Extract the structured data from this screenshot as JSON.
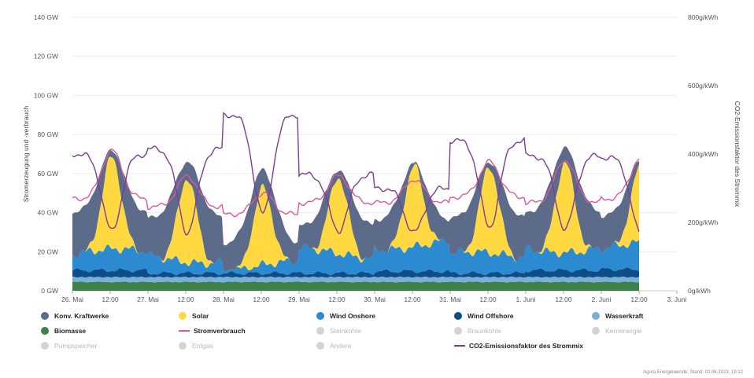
{
  "chart_data": {
    "type": "area",
    "title": "",
    "ylabel_left": "Stromerzeugung und -verbrauch",
    "ylabel_right": "CO2-Emissionsfaktor des Strommix",
    "left_ticks": [
      "0 GW",
      "20 GW",
      "40 GW",
      "60 GW",
      "80 GW",
      "100 GW",
      "120 GW",
      "140 GW"
    ],
    "right_ticks": [
      "0g/kWh",
      "200g/kWh",
      "400g/kWh",
      "600g/kWh",
      "800g/kWh"
    ],
    "ylim_left": [
      0,
      140
    ],
    "ylim_right": [
      0,
      800
    ],
    "x_ticks": [
      "26. Mai",
      "12:00",
      "27. Mai",
      "12:00",
      "28. Mai",
      "12:00",
      "29. Mai",
      "12:00",
      "30. Mai",
      "12:00",
      "31. Mai",
      "12:00",
      "1. Juni",
      "12:00",
      "2. Juni",
      "12:00",
      "3. Juni"
    ],
    "x_range_hours": [
      0,
      192
    ],
    "data_end_hour": 180,
    "days": [
      "26. Mai",
      "27. Mai",
      "28. Mai",
      "29. Mai",
      "30. Mai",
      "31. Mai",
      "1. Juni",
      "2. Juni"
    ],
    "series": [
      {
        "name": "Biomasse",
        "color": "#3f7f4a",
        "daily_level_gw": [
          4.5,
          4.5,
          4.5,
          4.5,
          4.5,
          4.5,
          4.5,
          4.5
        ]
      },
      {
        "name": "Wasserkraft",
        "color": "#7bafd4",
        "daily_level_gw": [
          2.5,
          2.5,
          2.5,
          2.5,
          2.5,
          2.5,
          2.5,
          2.5
        ]
      },
      {
        "name": "Wind Offshore",
        "color": "#0d4e8a",
        "daily_level_gw": [
          3.5,
          2,
          2,
          2,
          3,
          2,
          3.5,
          4
        ]
      },
      {
        "name": "Wind Onshore",
        "color": "#2c8ad0",
        "daily_level_gw": [
          8,
          8,
          3,
          10,
          14,
          8,
          12,
          11
        ]
      },
      {
        "name": "Solar",
        "color": "#ffd842",
        "daily_peak_gw": [
          48,
          44,
          40,
          40,
          42,
          45,
          47,
          40
        ]
      },
      {
        "name": "Konv. Kraftwerke",
        "color": "#5c6b8a",
        "daily_total_peak_gw": [
          72,
          66,
          62,
          62,
          65,
          66,
          73,
          67
        ],
        "night_total_gw": [
          40,
          37,
          24,
          33,
          36,
          37,
          40,
          38
        ]
      },
      {
        "name": "Stromverbrauch",
        "color": "#e0579e",
        "daily_peak_gw": [
          72,
          59,
          50,
          59,
          57,
          66,
          67,
          68
        ],
        "night_gw": [
          47,
          43,
          39,
          45,
          45,
          48,
          45,
          47
        ]
      },
      {
        "name": "CO2-Emissionsfaktor des Strommix",
        "color": "#7b3d99",
        "axis": "right",
        "daily_night_peak_g_kwh": [
          400,
          415,
          515,
          340,
          300,
          440,
          395,
          390
        ],
        "daily_midday_min_g_kwh": [
          175,
          170,
          225,
          175,
          170,
          185,
          180,
          165
        ]
      }
    ]
  },
  "legend": {
    "items": [
      {
        "label": "Konv. Kraftwerke",
        "color": "#5c6b8a",
        "marker": "dot",
        "active": true
      },
      {
        "label": "Solar",
        "color": "#ffd842",
        "marker": "dot",
        "active": true
      },
      {
        "label": "Wind Onshore",
        "color": "#2c8ad0",
        "marker": "dot",
        "active": true
      },
      {
        "label": "Wind Offshore",
        "color": "#0d4e8a",
        "marker": "dot",
        "active": true
      },
      {
        "label": "Wasserkraft",
        "color": "#7bafd4",
        "marker": "dot",
        "active": true
      },
      {
        "label": "Biomasse",
        "color": "#3f7f4a",
        "marker": "dot",
        "active": true
      },
      {
        "label": "Stromverbrauch",
        "color": "#e0579e",
        "marker": "line",
        "active": true
      },
      {
        "label": "Steinkohle",
        "color": "#d3d3d3",
        "marker": "dot",
        "active": false
      },
      {
        "label": "Braunkohle",
        "color": "#d3d3d3",
        "marker": "dot",
        "active": false
      },
      {
        "label": "Kernenergie",
        "color": "#d3d3d3",
        "marker": "dot",
        "active": false
      },
      {
        "label": "Pumpspeicher",
        "color": "#d3d3d3",
        "marker": "dot",
        "active": false
      },
      {
        "label": "Erdgas",
        "color": "#d3d3d3",
        "marker": "dot",
        "active": false
      },
      {
        "label": "Andere",
        "color": "#d3d3d3",
        "marker": "dot",
        "active": false
      },
      {
        "label": "CO2-Emissionsfaktor des Strommix",
        "color": "#7b3d99",
        "marker": "line",
        "active": true
      }
    ]
  },
  "credit": "Agora Energiewende; Stand: 02.06.2023, 19:12"
}
